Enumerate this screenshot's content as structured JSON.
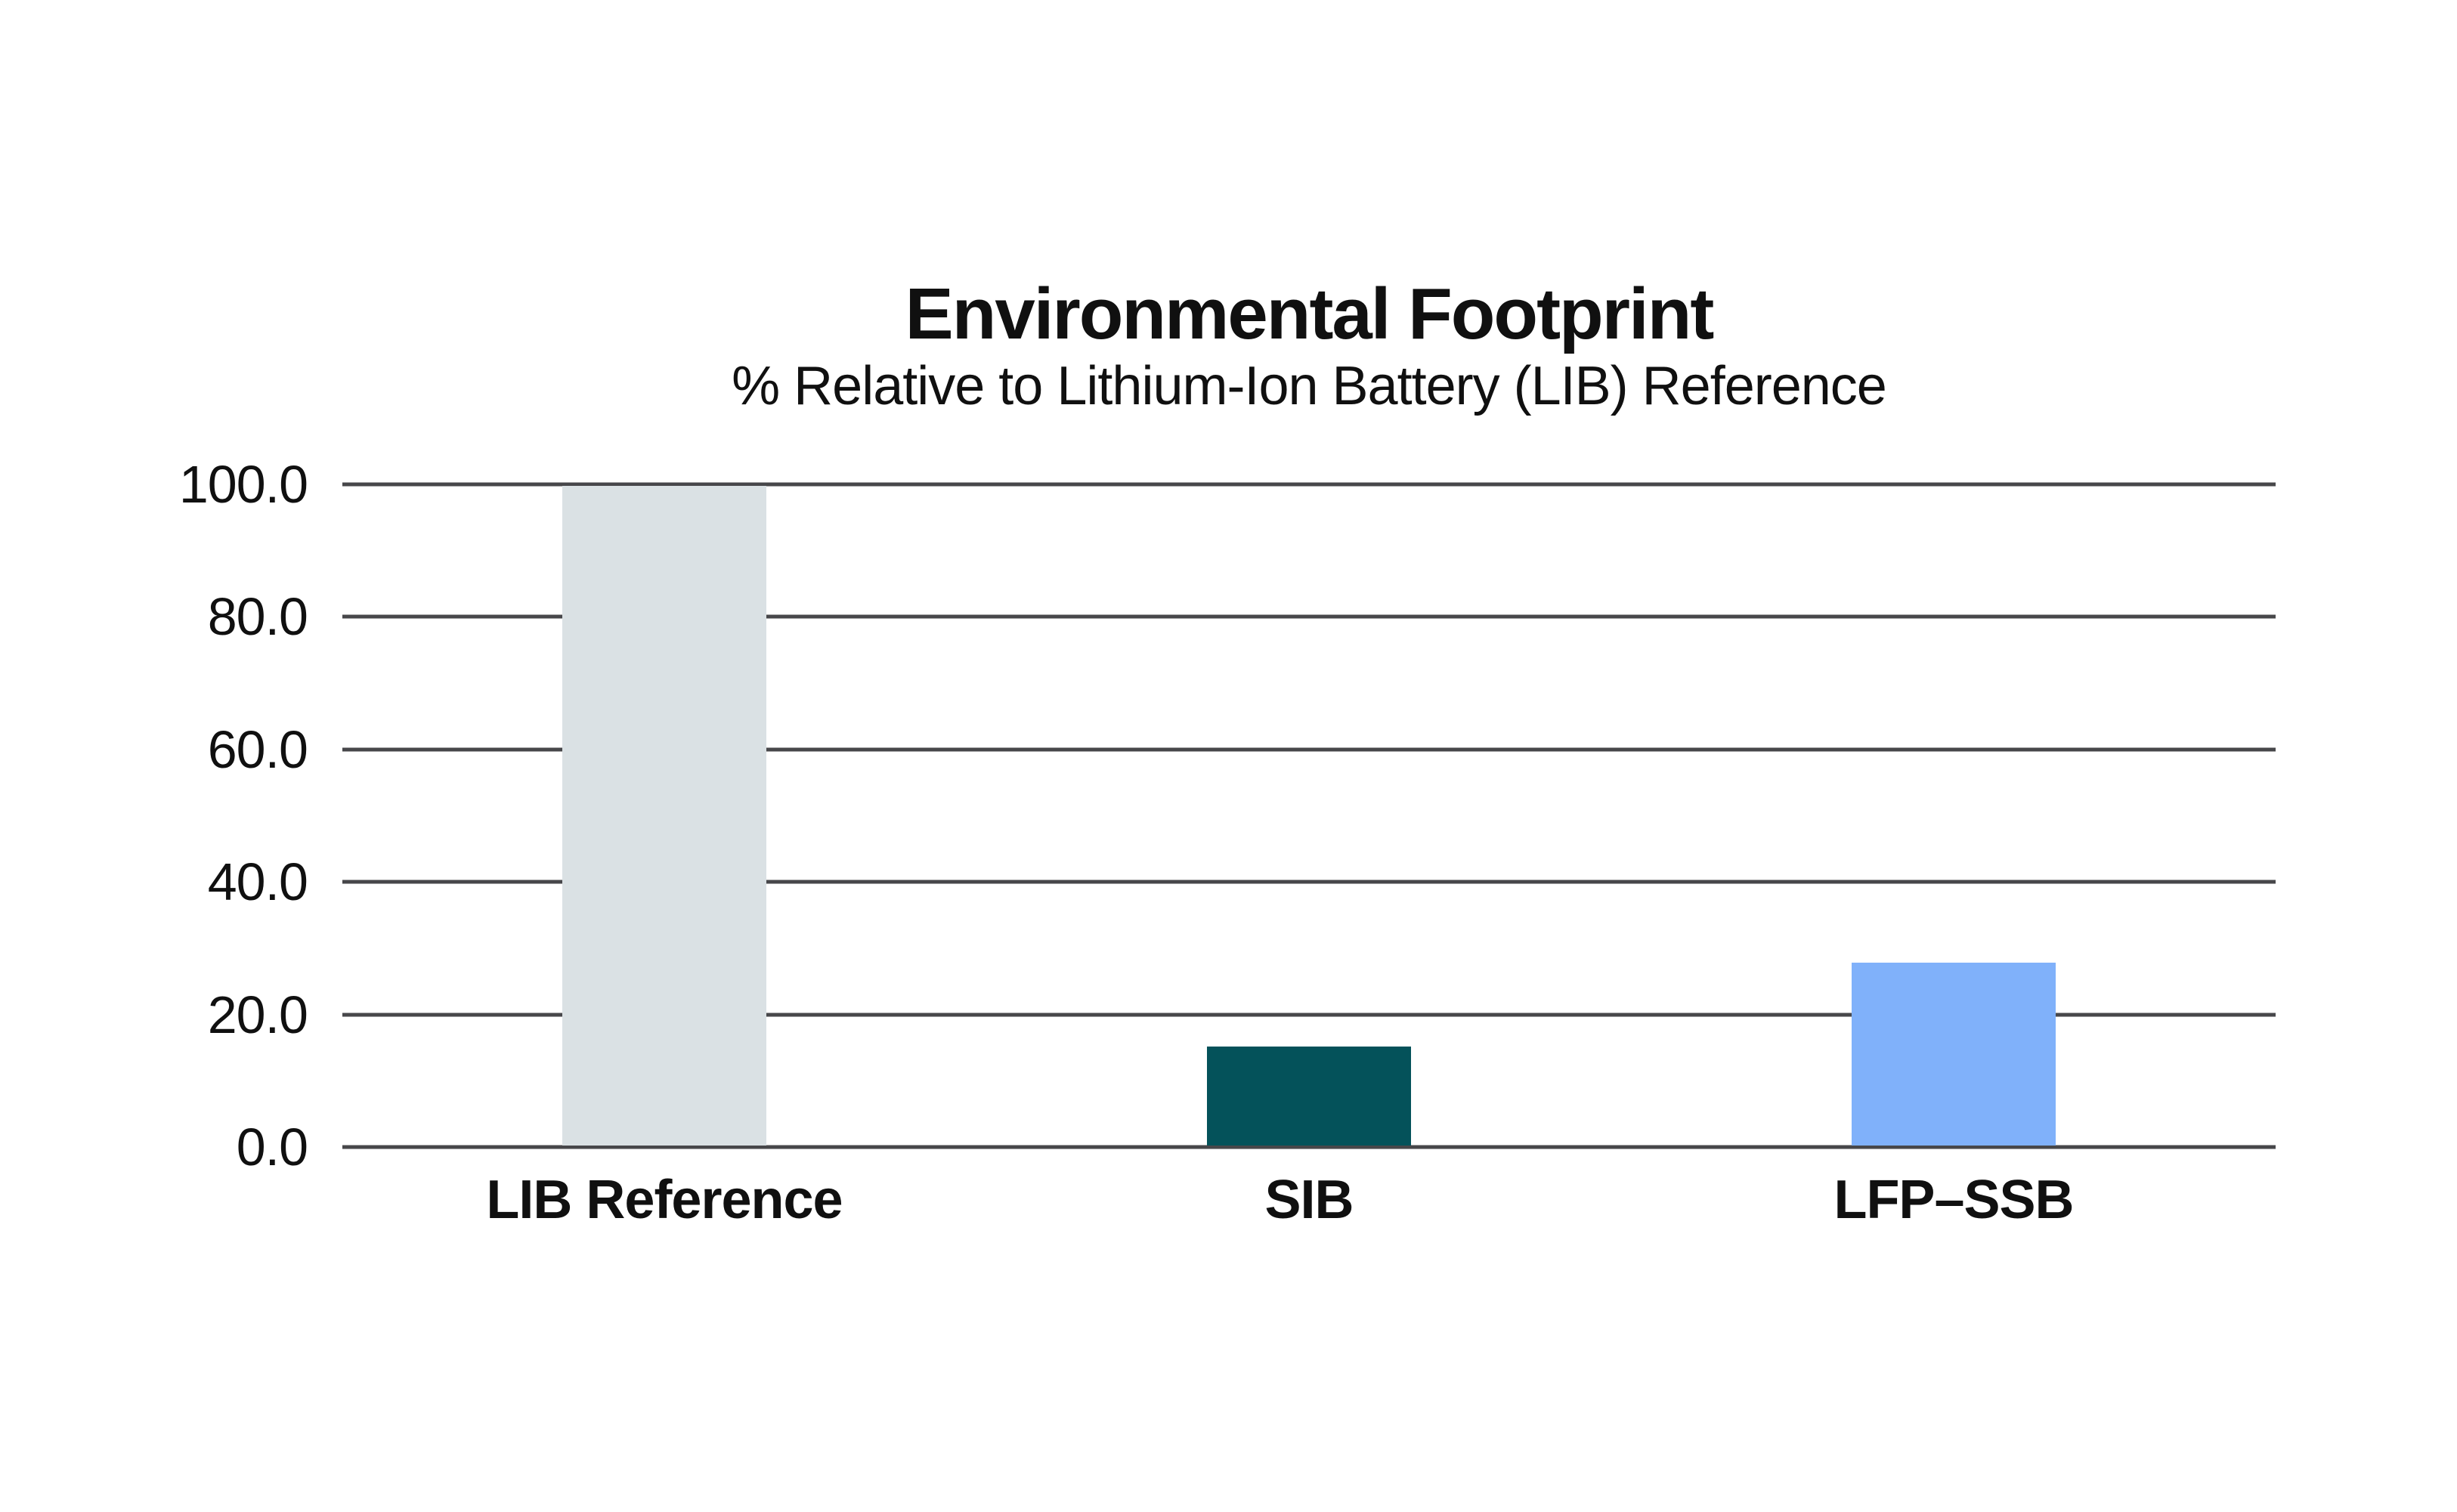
{
  "chart_data": {
    "type": "bar",
    "title": "Environmental Footprint",
    "subtitle": "% Relative to Lithium-Ion Battery (LIB) Reference",
    "categories": [
      "LIB Reference",
      "SIB",
      "LFP–SSB"
    ],
    "values": [
      100.0,
      15.4,
      28.0
    ],
    "bar_colors": [
      "#dae1e4",
      "#04525a",
      "#80b1fa"
    ],
    "yticks": [
      {
        "label": "0.0",
        "value": 0
      },
      {
        "label": "20.0",
        "value": 20
      },
      {
        "label": "40.0",
        "value": 40
      },
      {
        "label": "60.0",
        "value": 60
      },
      {
        "label": "80.0",
        "value": 80
      },
      {
        "label": "100.0",
        "value": 100
      }
    ],
    "ylim": [
      0,
      100
    ],
    "xlabel": "",
    "ylabel": "",
    "grid": "horizontal-only",
    "gridline_color": "#47474a",
    "legend": "none",
    "text_color": "#101010",
    "background": "#ffffff"
  }
}
